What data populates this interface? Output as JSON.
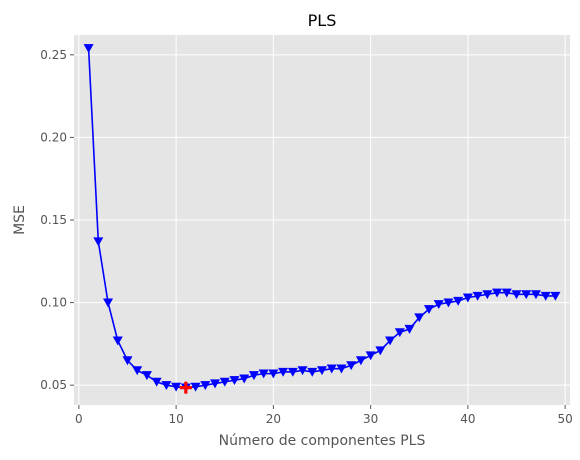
{
  "chart_data": {
    "type": "line",
    "title": "PLS",
    "xlabel": "Número de componentes PLS",
    "ylabel": "MSE",
    "xlim": [
      -0.5,
      50.5
    ],
    "ylim": [
      0.038,
      0.262
    ],
    "xticks": [
      0,
      10,
      20,
      30,
      40,
      50
    ],
    "yticks": [
      0.05,
      0.1,
      0.15,
      0.2,
      0.25
    ],
    "ytick_labels": [
      "0.05",
      "0.10",
      "0.15",
      "0.20",
      "0.25"
    ],
    "grid": true,
    "colors": {
      "background": "#e5e5e5",
      "series": "#0000ff",
      "best": "#ff0000"
    },
    "series": [
      {
        "x": [
          1,
          2,
          3,
          4,
          5,
          6,
          7,
          8,
          9,
          10,
          11,
          12,
          13,
          14,
          15,
          16,
          17,
          18,
          19,
          20,
          21,
          22,
          23,
          24,
          25,
          26,
          27,
          28,
          29,
          30,
          31,
          32,
          33,
          34,
          35,
          36,
          37,
          38,
          39,
          40,
          41,
          42,
          43,
          44,
          45,
          46,
          47,
          48,
          49
        ],
        "values": [
          0.254,
          0.137,
          0.1,
          0.077,
          0.065,
          0.059,
          0.056,
          0.052,
          0.05,
          0.049,
          0.0485,
          0.049,
          0.05,
          0.051,
          0.052,
          0.053,
          0.054,
          0.056,
          0.057,
          0.057,
          0.058,
          0.058,
          0.059,
          0.058,
          0.059,
          0.06,
          0.06,
          0.062,
          0.065,
          0.068,
          0.071,
          0.077,
          0.082,
          0.084,
          0.091,
          0.096,
          0.099,
          0.1,
          0.101,
          0.103,
          0.104,
          0.105,
          0.106,
          0.106,
          0.105,
          0.105,
          0.105,
          0.104,
          0.104
        ],
        "marker": "triangle-down"
      }
    ],
    "best_point": {
      "x": 11,
      "y": 0.0485,
      "marker": "plus"
    }
  }
}
